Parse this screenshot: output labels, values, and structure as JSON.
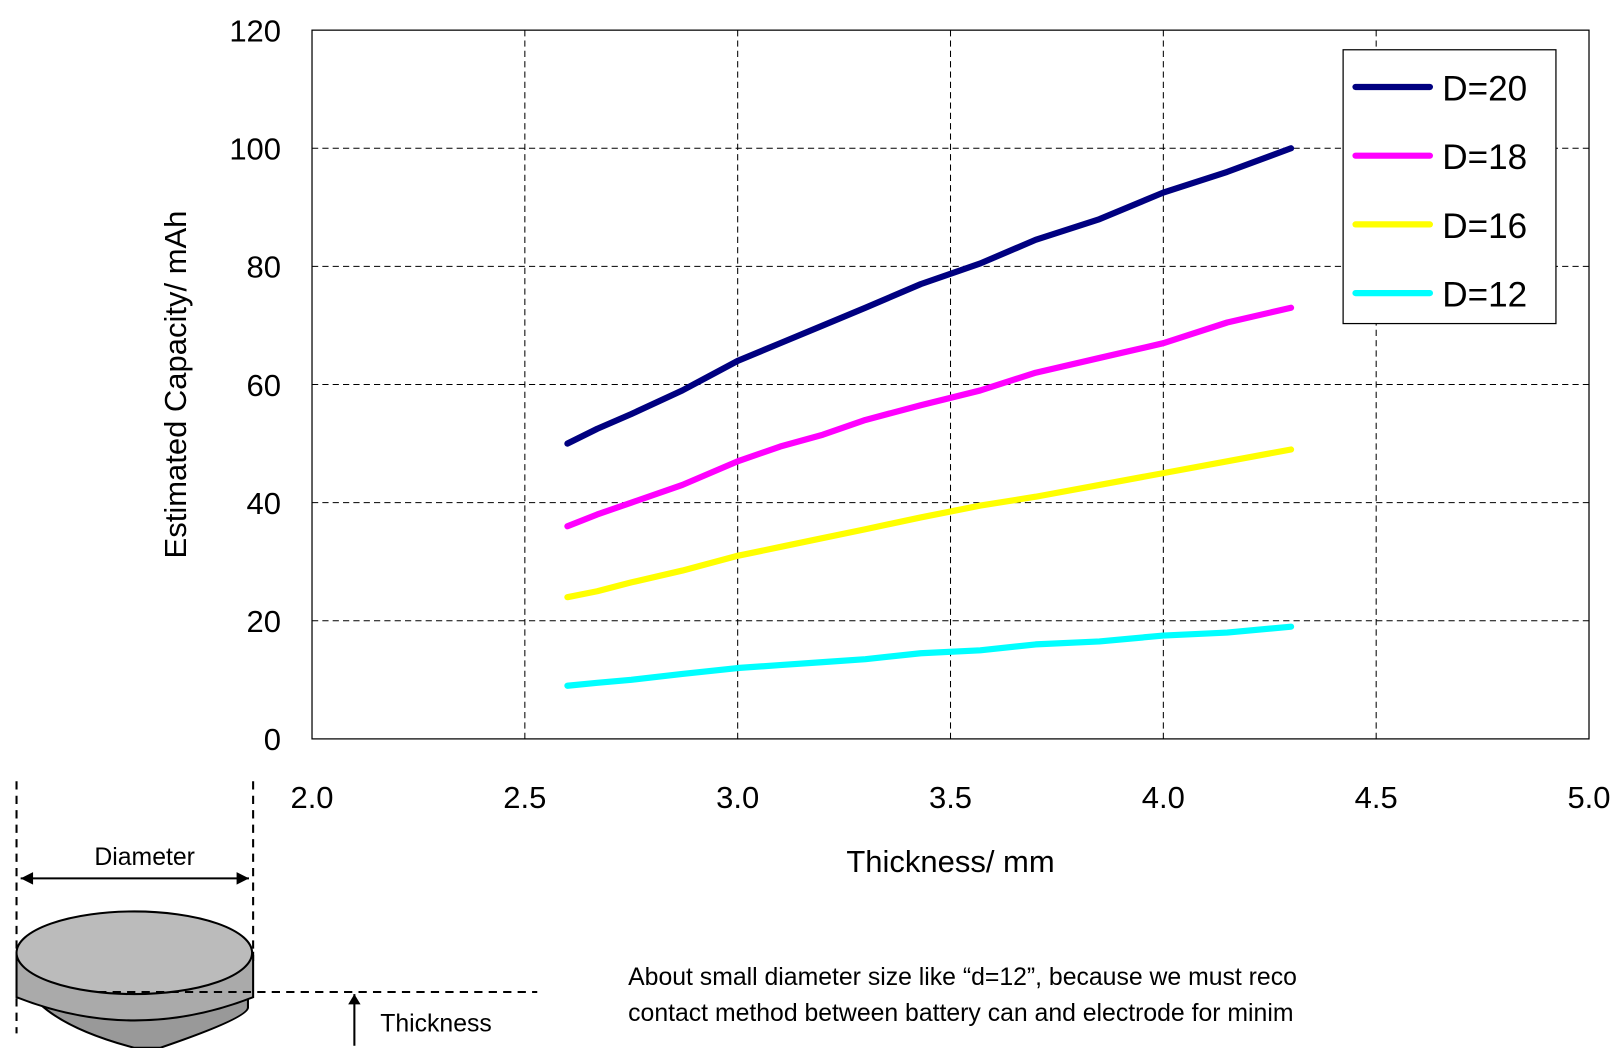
{
  "chart_data": {
    "type": "line",
    "xlabel": "Thickness/ mm",
    "ylabel": "Estimated Capacity/ mAh",
    "x": [
      2.6,
      2.67,
      2.75,
      2.87,
      3.0,
      3.1,
      3.2,
      3.3,
      3.43,
      3.57,
      3.7,
      3.85,
      4.0,
      4.15,
      4.3
    ],
    "series": [
      {
        "name": "D=20",
        "color": "#000080",
        "values": [
          50,
          52.5,
          55,
          59,
          64,
          67,
          70,
          73,
          77,
          80.5,
          84.5,
          88,
          92.5,
          96,
          100
        ]
      },
      {
        "name": "D=18",
        "color": "#ff00ff",
        "values": [
          36,
          38,
          40,
          43,
          47,
          49.5,
          51.5,
          54,
          56.5,
          59,
          62,
          64.5,
          67,
          70.5,
          73
        ]
      },
      {
        "name": "D=16",
        "color": "#ffff00",
        "values": [
          24,
          25,
          26.5,
          28.5,
          31,
          32.5,
          34,
          35.5,
          37.5,
          39.5,
          41,
          43,
          45,
          47,
          49
        ]
      },
      {
        "name": "D=12",
        "color": "#00ffff",
        "values": [
          9,
          9.5,
          10,
          11,
          12,
          12.5,
          13,
          13.5,
          14.5,
          15,
          16,
          16.5,
          17.5,
          18,
          19
        ]
      }
    ],
    "xlim": [
      2.0,
      5.0
    ],
    "xticks": [
      {
        "value": 2.0,
        "label": "2.0"
      },
      {
        "value": 2.5,
        "label": "2.5"
      },
      {
        "value": 3.0,
        "label": "3.0"
      },
      {
        "value": 3.5,
        "label": "3.5"
      },
      {
        "value": 4.0,
        "label": "4.0"
      },
      {
        "value": 4.5,
        "label": "4.5"
      },
      {
        "value": 5.0,
        "label": "5.0"
      }
    ],
    "ylim": [
      0,
      120
    ],
    "yticks": [
      0,
      20,
      40,
      60,
      80,
      100,
      120
    ],
    "grid": true,
    "legend": "upper-right"
  },
  "diagram": {
    "diameter_label": "Diameter",
    "thickness_label": "Thickness"
  },
  "notes": [
    "About small diameter size like “d=12”, because we must reco",
    "contact method between  battery can and electrode for minim"
  ]
}
